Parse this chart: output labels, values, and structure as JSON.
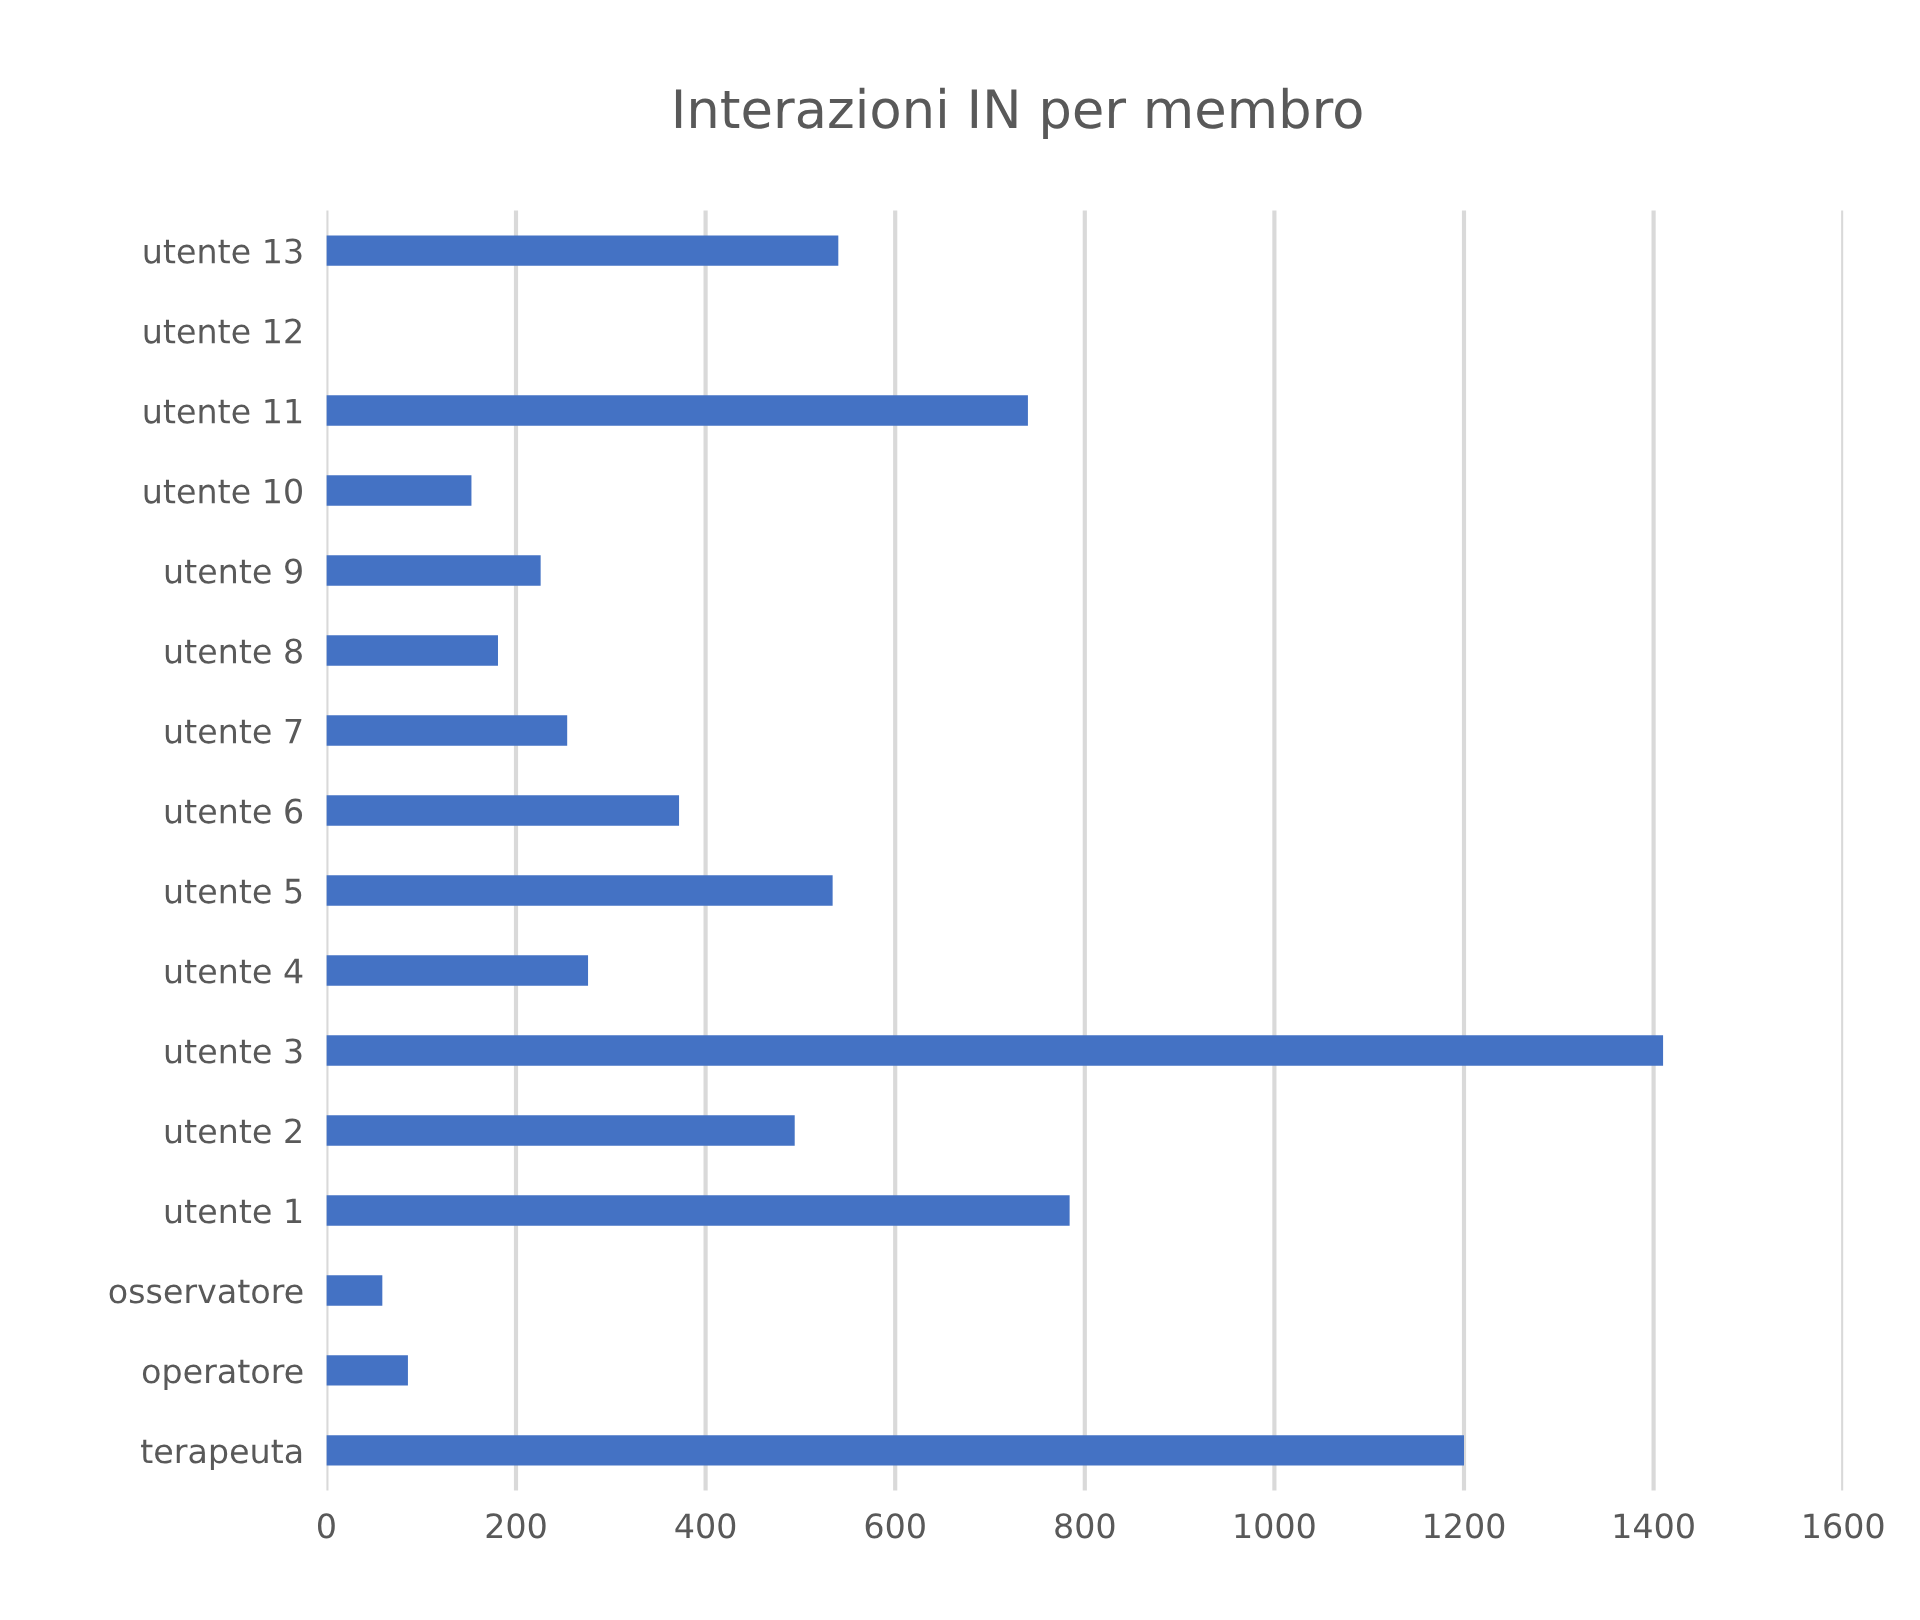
{
  "chart_data": {
    "type": "bar",
    "orientation": "horizontal",
    "title": "Interazioni IN per membro",
    "categories": [
      "utente 13",
      "utente 12",
      "utente 11",
      "utente 10",
      "utente 9",
      "utente 8",
      "utente 7",
      "utente 6",
      "utente 5",
      "utente 4",
      "utente 3",
      "utente 2",
      "utente 1",
      "osservatore",
      "operatore",
      "terapeuta"
    ],
    "values": [
      540,
      0,
      740,
      153,
      226,
      181,
      254,
      372,
      534,
      276,
      1410,
      494,
      784,
      59,
      86,
      1200
    ],
    "color": "#4472c4",
    "xlim": [
      0,
      1600
    ],
    "xticks": [
      0,
      200,
      400,
      600,
      800,
      1000,
      1200,
      1400,
      1600
    ],
    "grid": "x",
    "legend": false
  }
}
